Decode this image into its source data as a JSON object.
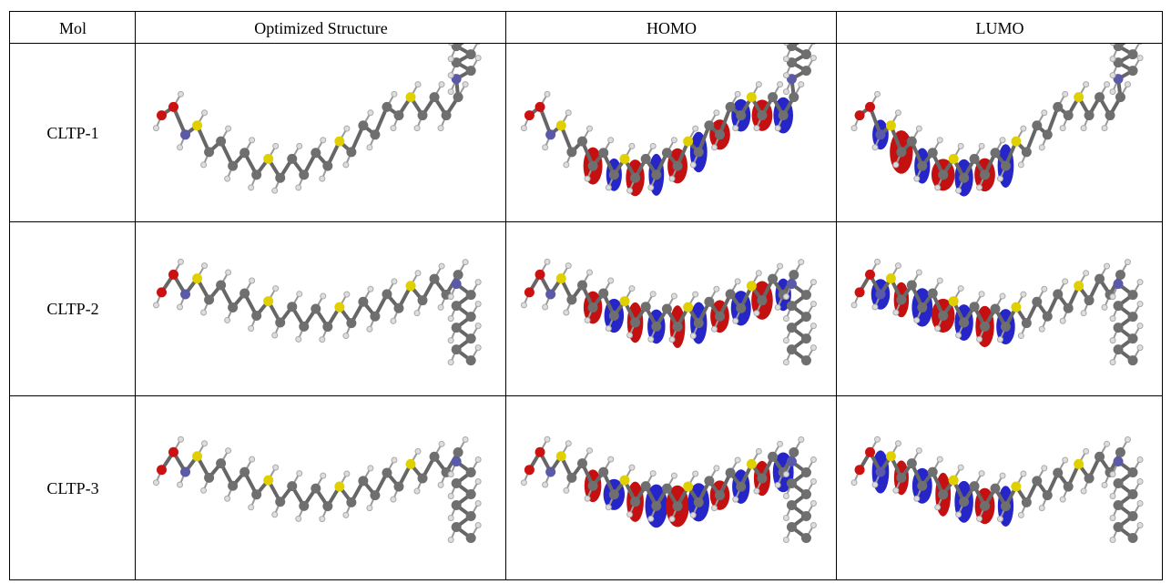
{
  "table": {
    "headers": [
      "Mol",
      "Optimized Structure",
      "HOMO",
      "LUMO"
    ],
    "rows": [
      [
        "CLTP-1"
      ],
      [
        "CLTP-2"
      ],
      [
        "CLTP-3"
      ]
    ]
  }
}
